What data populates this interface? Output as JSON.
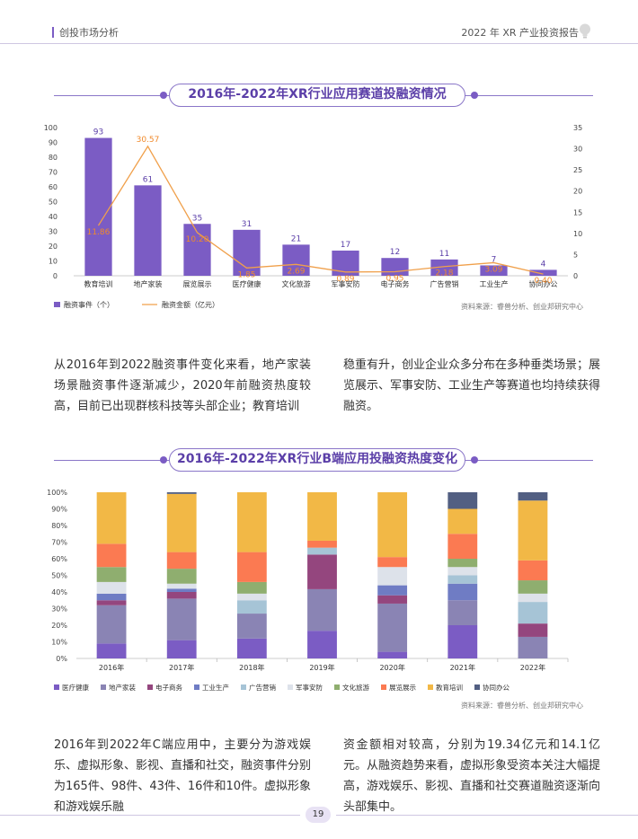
{
  "header": {
    "left": "创投市场分析",
    "right": "2022 年 XR 产业投资报告"
  },
  "section1": {
    "title": "2016年-2022年XR行业应用赛道投融资情况"
  },
  "chart1": {
    "type": "bar",
    "categories": [
      "教育培训",
      "地产家装",
      "展览展示",
      "医疗健康",
      "文化旅游",
      "军事安防",
      "电子商务",
      "广告营销",
      "工业生产",
      "协同办公"
    ],
    "series": [
      {
        "name": "融资事件（个）",
        "type": "bar",
        "values": [
          93,
          61,
          35,
          31,
          21,
          17,
          12,
          11,
          7,
          4
        ],
        "color": "#7b5cc4"
      },
      {
        "name": "融资金额（亿元）",
        "type": "line",
        "values": [
          11.86,
          30.57,
          10.2,
          1.85,
          2.69,
          0.89,
          0.95,
          2.18,
          3.09,
          0.4
        ],
        "color": "#f0a04b"
      }
    ],
    "bar_labels": [
      "93",
      "61",
      "35",
      "31",
      "21",
      "17",
      "12",
      "11",
      "7",
      "4"
    ],
    "line_labels": [
      "11.86",
      "30.57",
      "10.20",
      "1.85",
      "2.69",
      "0.89",
      "0.95",
      "2.18",
      "3.09",
      "0.40"
    ],
    "yleft_ticks": [
      "0",
      "10",
      "20",
      "30",
      "40",
      "50",
      "60",
      "70",
      "80",
      "90",
      "100"
    ],
    "yright_ticks": [
      "0",
      "5",
      "10",
      "15",
      "20",
      "25",
      "30",
      "35"
    ],
    "ylim_left": [
      0,
      100
    ],
    "ylim_right": [
      0,
      35
    ],
    "legend_bar": "融资事件（个）",
    "legend_line": "融资金额（亿元）",
    "source": "资料来源：睿兽分析、创业邦研究中心"
  },
  "para1": {
    "left": "从2016年到2022融资事件变化来看，地产家装场景融资事件逐渐减少，2020年前融资热度较高，目前已出现群核科技等头部企业；教育培训",
    "right": "稳重有升，创业企业众多分布在多种垂类场景；展览展示、军事安防、工业生产等赛道也均持续获得融资。"
  },
  "section2": {
    "title": "2016年-2022年XR行业B端应用投融资热度变化"
  },
  "chart2": {
    "type": "bar",
    "stacked": true,
    "percent": true,
    "categories": [
      "2016年",
      "2017年",
      "2018年",
      "2019年",
      "2020年",
      "2021年",
      "2022年"
    ],
    "yticks": [
      "0%",
      "10%",
      "20%",
      "30%",
      "40%",
      "50%",
      "60%",
      "70%",
      "80%",
      "90%",
      "100%"
    ],
    "series": [
      {
        "name": "医疗健康",
        "color": "#7b5cc4",
        "values": [
          9,
          11,
          12,
          16,
          4,
          20,
          0
        ]
      },
      {
        "name": "地产家装",
        "color": "#8a84b4",
        "values": [
          23,
          25,
          15,
          24,
          29,
          15,
          13
        ]
      },
      {
        "name": "电子商务",
        "color": "#94467e",
        "values": [
          3,
          4,
          0,
          20,
          5,
          0,
          8
        ]
      },
      {
        "name": "工业生产",
        "color": "#6f7cc4",
        "values": [
          4,
          2,
          0,
          0,
          6,
          10,
          0
        ]
      },
      {
        "name": "广告营销",
        "color": "#a6c4d6",
        "values": [
          0,
          0,
          8,
          4,
          0,
          5,
          13
        ]
      },
      {
        "name": "军事安防",
        "color": "#dde2ea",
        "values": [
          7,
          3,
          4,
          0,
          11,
          5,
          5
        ]
      },
      {
        "name": "文化旅游",
        "color": "#8fae6f",
        "values": [
          9,
          9,
          7,
          0,
          0,
          5,
          8
        ]
      },
      {
        "name": "展览展示",
        "color": "#fb7a52",
        "values": [
          14,
          10,
          18,
          4,
          6,
          15,
          12
        ]
      },
      {
        "name": "教育培训",
        "color": "#f2b846",
        "values": [
          31,
          35,
          36,
          28,
          39,
          15,
          36
        ]
      },
      {
        "name": "协同办公",
        "color": "#525f82",
        "values": [
          0,
          1,
          0,
          0,
          0,
          10,
          5
        ]
      }
    ],
    "source": "资料来源：睿兽分析、创业邦研究中心"
  },
  "para2": {
    "left": "2016年到2022年C端应用中，主要分为游戏娱乐、虚拟形象、影视、直播和社交，融资事件分别为165件、98件、43件、16件和10件。虚拟形象和游戏娱乐融",
    "right": "资金额相对较高，分别为19.34亿元和14.1亿元。从融资趋势来看，虚拟形象受资本关注大幅提高，游戏娱乐、影视、直播和社交赛道融资逐渐向头部集中。"
  },
  "footer": {
    "page": "19"
  }
}
